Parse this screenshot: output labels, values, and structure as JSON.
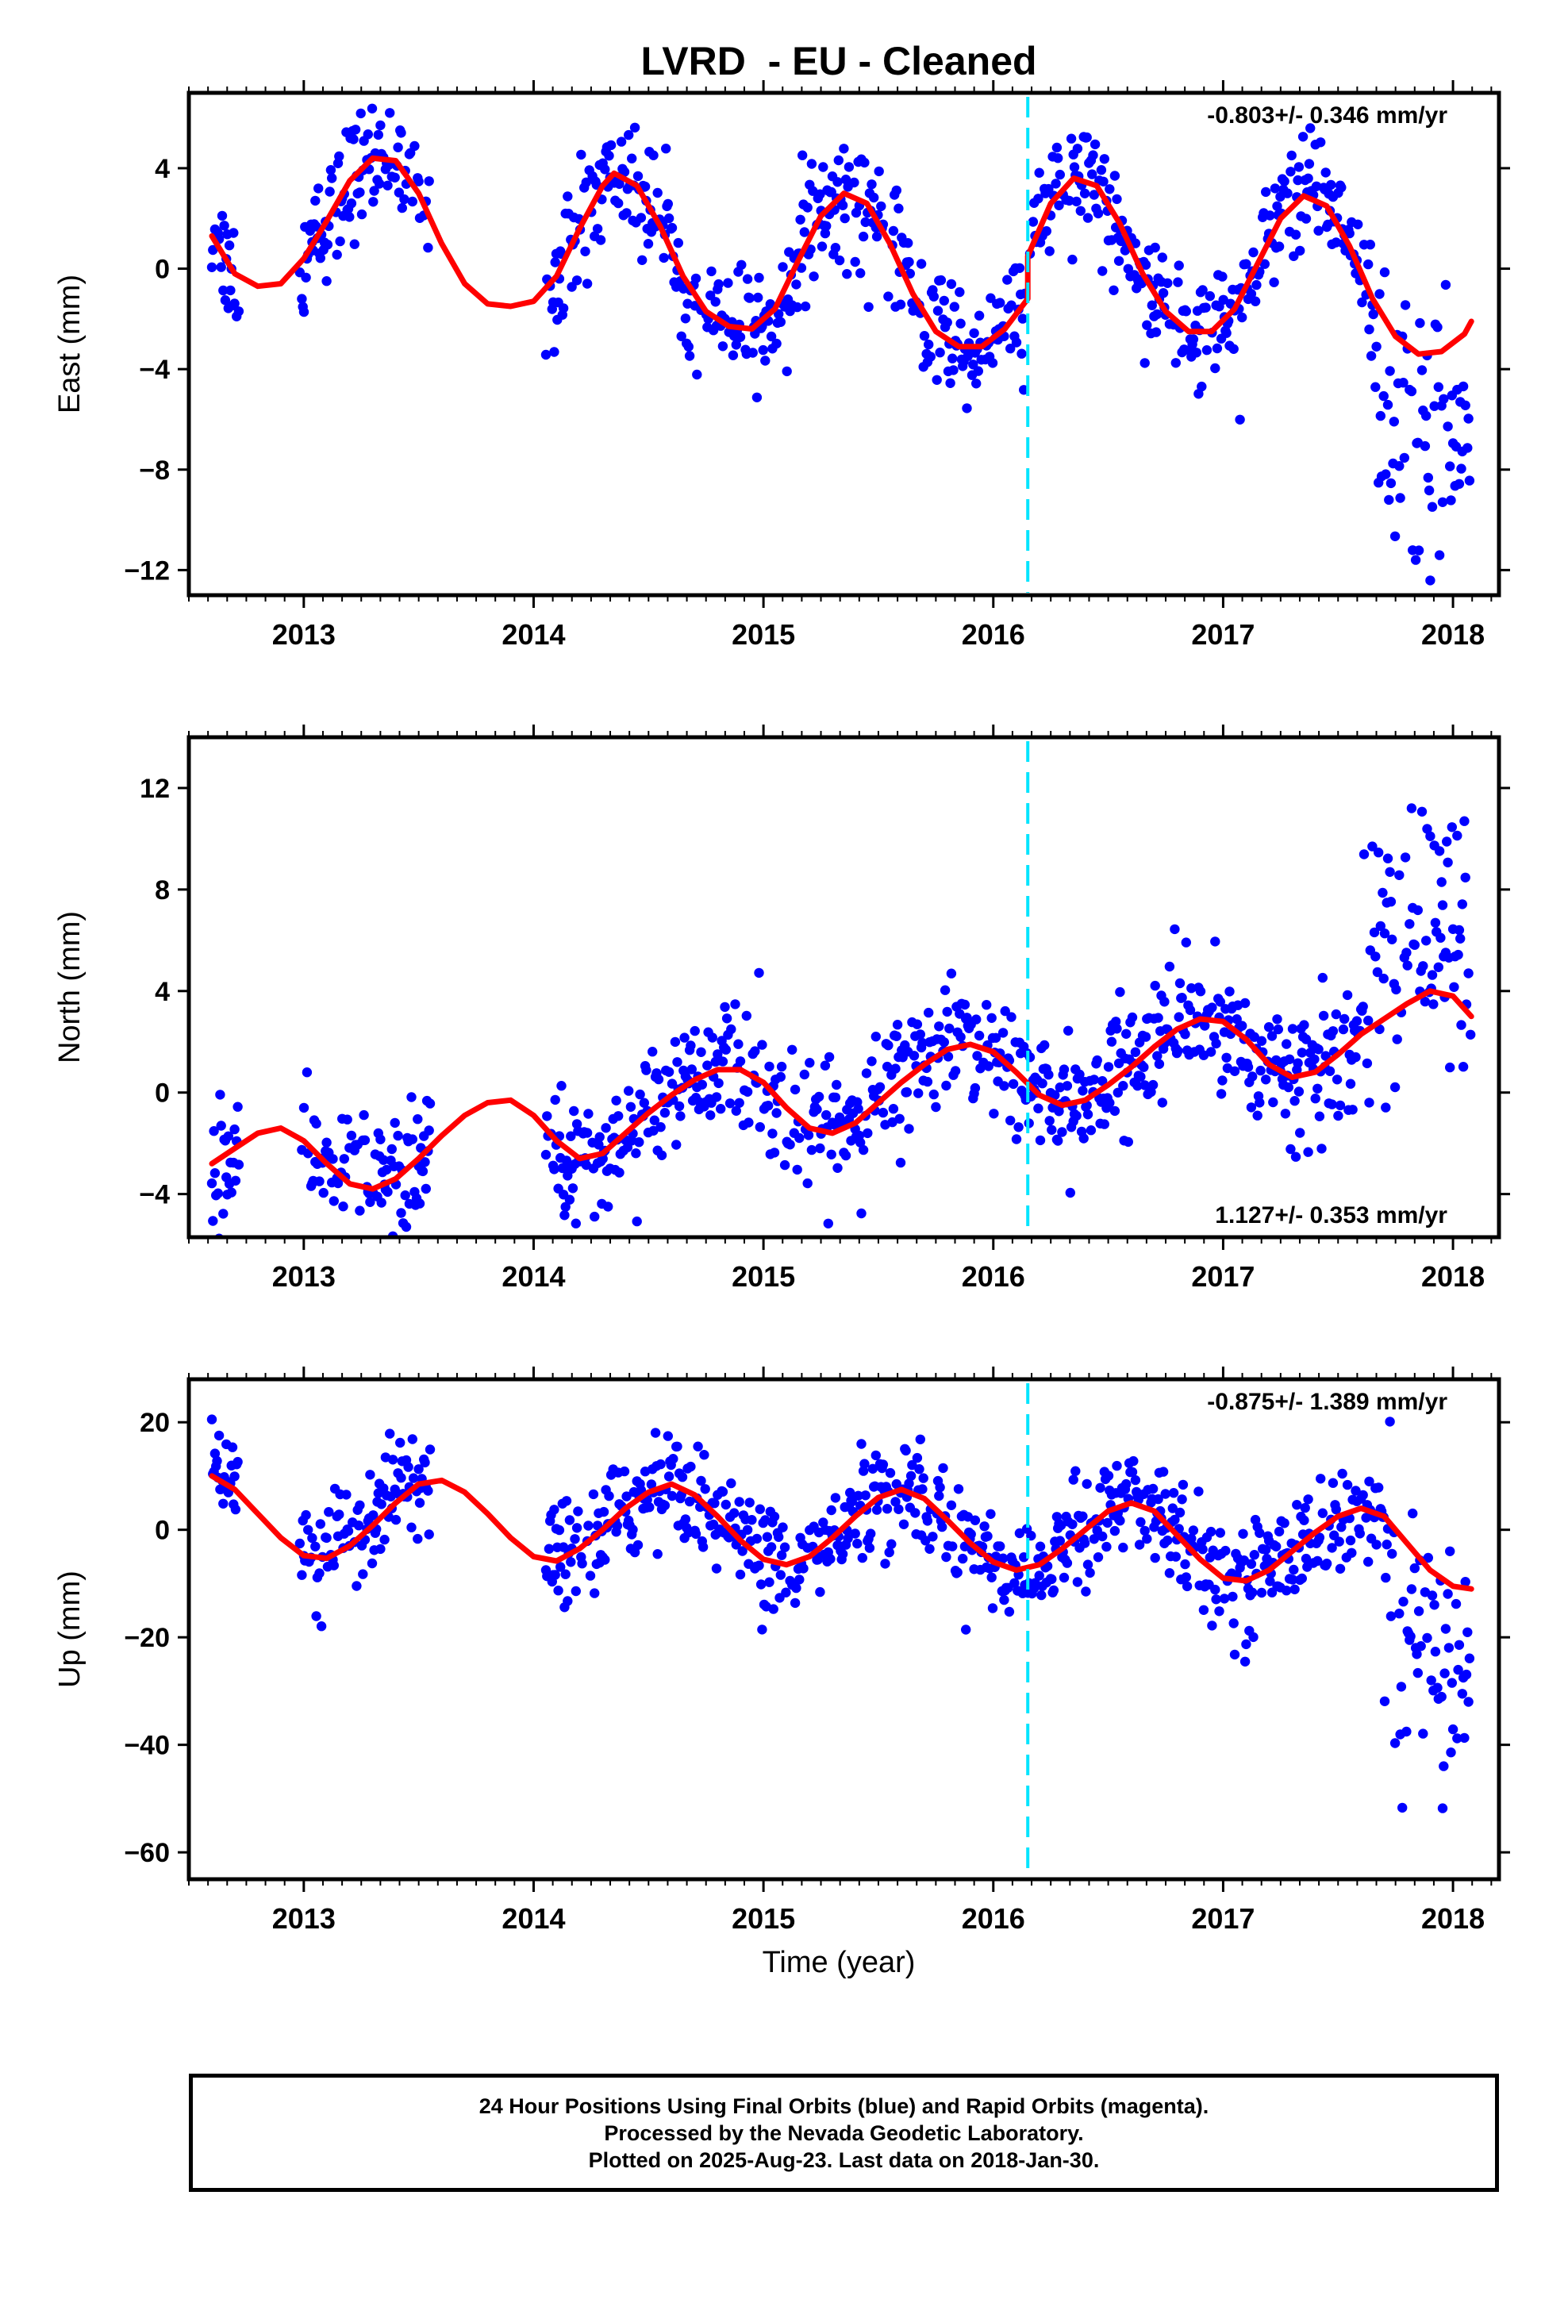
{
  "title": "LVRD  - EU - Cleaned",
  "xlabel": "Time (year)",
  "footer": {
    "line1": "24 Hour Positions Using Final Orbits (blue) and Rapid Orbits (magenta).",
    "line2": "Processed by the Nevada Geodetic Laboratory.",
    "line3": "Plotted on 2025-Aug-23. Last data on 2018-Jan-30."
  },
  "colors": {
    "data": "#0000ff",
    "fit": "#ff0000",
    "marker": "#00e5ff",
    "frame": "#000000"
  },
  "chart_data": [
    {
      "type": "scatter",
      "component": "East",
      "ylabel": "East (mm)",
      "rate_label": "-0.803+/- 0.346 mm/yr",
      "xlim": [
        2012.5,
        2018.2
      ],
      "ylim": [
        -13,
        7
      ],
      "xticks": [
        2013,
        2014,
        2015,
        2016,
        2017,
        2018
      ],
      "yticks": [
        -12,
        -8,
        -4,
        0,
        4
      ],
      "marker_epoch": 2016.15,
      "data_range": [
        2012.6,
        2018.08
      ],
      "gaps": [
        [
          2012.72,
          2012.98
        ],
        [
          2013.55,
          2014.05
        ]
      ],
      "fit": [
        [
          2012.6,
          1.3
        ],
        [
          2012.7,
          -0.2
        ],
        [
          2012.8,
          -0.7
        ],
        [
          2012.9,
          -0.6
        ],
        [
          2013.0,
          0.4
        ],
        [
          2013.1,
          1.9
        ],
        [
          2013.2,
          3.5
        ],
        [
          2013.3,
          4.4
        ],
        [
          2013.4,
          4.3
        ],
        [
          2013.5,
          3.0
        ],
        [
          2013.6,
          1.0
        ],
        [
          2013.7,
          -0.6
        ],
        [
          2013.8,
          -1.4
        ],
        [
          2013.9,
          -1.5
        ],
        [
          2014.0,
          -1.3
        ],
        [
          2014.1,
          -0.3
        ],
        [
          2014.2,
          1.6
        ],
        [
          2014.3,
          3.3
        ],
        [
          2014.35,
          3.8
        ],
        [
          2014.45,
          3.3
        ],
        [
          2014.55,
          1.7
        ],
        [
          2014.65,
          -0.3
        ],
        [
          2014.75,
          -1.7
        ],
        [
          2014.85,
          -2.3
        ],
        [
          2014.95,
          -2.4
        ],
        [
          2015.05,
          -1.6
        ],
        [
          2015.15,
          0.3
        ],
        [
          2015.25,
          2.1
        ],
        [
          2015.35,
          3.0
        ],
        [
          2015.45,
          2.6
        ],
        [
          2015.55,
          1.0
        ],
        [
          2015.65,
          -1.0
        ],
        [
          2015.75,
          -2.5
        ],
        [
          2015.85,
          -3.1
        ],
        [
          2015.95,
          -3.1
        ],
        [
          2016.05,
          -2.4
        ],
        [
          2016.15,
          -1.2
        ],
        [
          2016.15,
          0.5
        ],
        [
          2016.25,
          2.6
        ],
        [
          2016.35,
          3.6
        ],
        [
          2016.45,
          3.3
        ],
        [
          2016.55,
          1.8
        ],
        [
          2016.65,
          -0.2
        ],
        [
          2016.75,
          -1.7
        ],
        [
          2016.85,
          -2.5
        ],
        [
          2016.95,
          -2.5
        ],
        [
          2017.05,
          -1.6
        ],
        [
          2017.15,
          0.2
        ],
        [
          2017.25,
          2.0
        ],
        [
          2017.35,
          2.9
        ],
        [
          2017.45,
          2.5
        ],
        [
          2017.55,
          0.9
        ],
        [
          2017.65,
          -1.2
        ],
        [
          2017.75,
          -2.7
        ],
        [
          2017.85,
          -3.4
        ],
        [
          2017.95,
          -3.3
        ],
        [
          2018.05,
          -2.6
        ],
        [
          2018.08,
          -2.1
        ]
      ],
      "scatter_sigma": 1.2,
      "late_offset": {
        "start": 2017.65,
        "value": -4.5,
        "sigma": 2.4
      }
    },
    {
      "type": "scatter",
      "component": "North",
      "ylabel": "North (mm)",
      "rate_label": "1.127+/- 0.353 mm/yr",
      "xlim": [
        2012.5,
        2018.2
      ],
      "ylim": [
        -5.7,
        14
      ],
      "xticks": [
        2013,
        2014,
        2015,
        2016,
        2017,
        2018
      ],
      "yticks": [
        -4,
        0,
        4,
        8,
        12
      ],
      "marker_epoch": 2016.15,
      "data_range": [
        2012.6,
        2018.08
      ],
      "gaps": [
        [
          2012.72,
          2012.98
        ],
        [
          2013.55,
          2014.05
        ]
      ],
      "fit": [
        [
          2012.6,
          -2.8
        ],
        [
          2012.7,
          -2.2
        ],
        [
          2012.8,
          -1.6
        ],
        [
          2012.9,
          -1.4
        ],
        [
          2013.0,
          -1.9
        ],
        [
          2013.1,
          -2.8
        ],
        [
          2013.2,
          -3.6
        ],
        [
          2013.3,
          -3.8
        ],
        [
          2013.4,
          -3.4
        ],
        [
          2013.5,
          -2.6
        ],
        [
          2013.6,
          -1.7
        ],
        [
          2013.7,
          -0.9
        ],
        [
          2013.8,
          -0.4
        ],
        [
          2013.9,
          -0.3
        ],
        [
          2014.0,
          -0.9
        ],
        [
          2014.1,
          -1.9
        ],
        [
          2014.2,
          -2.6
        ],
        [
          2014.3,
          -2.4
        ],
        [
          2014.4,
          -1.6
        ],
        [
          2014.5,
          -0.8
        ],
        [
          2014.6,
          -0.1
        ],
        [
          2014.7,
          0.5
        ],
        [
          2014.8,
          0.9
        ],
        [
          2014.9,
          0.9
        ],
        [
          2015.0,
          0.4
        ],
        [
          2015.1,
          -0.6
        ],
        [
          2015.2,
          -1.4
        ],
        [
          2015.3,
          -1.6
        ],
        [
          2015.4,
          -1.2
        ],
        [
          2015.5,
          -0.4
        ],
        [
          2015.6,
          0.4
        ],
        [
          2015.7,
          1.1
        ],
        [
          2015.8,
          1.7
        ],
        [
          2015.9,
          1.9
        ],
        [
          2016.0,
          1.6
        ],
        [
          2016.1,
          0.8
        ],
        [
          2016.2,
          -0.1
        ],
        [
          2016.3,
          -0.5
        ],
        [
          2016.4,
          -0.3
        ],
        [
          2016.5,
          0.3
        ],
        [
          2016.6,
          1.0
        ],
        [
          2016.7,
          1.8
        ],
        [
          2016.8,
          2.5
        ],
        [
          2016.9,
          2.9
        ],
        [
          2017.0,
          2.8
        ],
        [
          2017.1,
          2.1
        ],
        [
          2017.2,
          1.1
        ],
        [
          2017.3,
          0.6
        ],
        [
          2017.4,
          0.8
        ],
        [
          2017.5,
          1.5
        ],
        [
          2017.6,
          2.3
        ],
        [
          2017.7,
          2.9
        ],
        [
          2017.8,
          3.5
        ],
        [
          2017.9,
          4.0
        ],
        [
          2018.0,
          3.8
        ],
        [
          2018.08,
          3.0
        ]
      ],
      "scatter_sigma": 1.2,
      "late_offset": {
        "start": 2017.6,
        "value": 3.5,
        "sigma": 2.0
      }
    },
    {
      "type": "scatter",
      "component": "Up",
      "ylabel": "Up (mm)",
      "rate_label": "-0.875+/- 1.389 mm/yr",
      "xlim": [
        2012.5,
        2018.2
      ],
      "ylim": [
        -65,
        28
      ],
      "xticks": [
        2013,
        2014,
        2015,
        2016,
        2017,
        2018
      ],
      "yticks": [
        -60,
        -40,
        -20,
        0,
        20
      ],
      "marker_epoch": 2016.15,
      "data_range": [
        2012.6,
        2018.08
      ],
      "gaps": [
        [
          2012.72,
          2012.98
        ],
        [
          2013.55,
          2014.05
        ]
      ],
      "fit": [
        [
          2012.6,
          10.0
        ],
        [
          2012.7,
          7.5
        ],
        [
          2012.8,
          3.0
        ],
        [
          2012.9,
          -1.5
        ],
        [
          2013.0,
          -4.8
        ],
        [
          2013.1,
          -5.3
        ],
        [
          2013.2,
          -3.0
        ],
        [
          2013.3,
          0.8
        ],
        [
          2013.4,
          5.0
        ],
        [
          2013.5,
          8.5
        ],
        [
          2013.6,
          9.2
        ],
        [
          2013.7,
          7.0
        ],
        [
          2013.8,
          3.0
        ],
        [
          2013.9,
          -1.5
        ],
        [
          2014.0,
          -5.0
        ],
        [
          2014.1,
          -5.8
        ],
        [
          2014.2,
          -3.5
        ],
        [
          2014.3,
          0.0
        ],
        [
          2014.4,
          4.0
        ],
        [
          2014.5,
          7.0
        ],
        [
          2014.6,
          8.5
        ],
        [
          2014.7,
          6.5
        ],
        [
          2014.8,
          2.5
        ],
        [
          2014.9,
          -2.0
        ],
        [
          2015.0,
          -5.5
        ],
        [
          2015.1,
          -6.5
        ],
        [
          2015.2,
          -5.0
        ],
        [
          2015.3,
          -1.5
        ],
        [
          2015.4,
          2.5
        ],
        [
          2015.5,
          6.0
        ],
        [
          2015.6,
          7.5
        ],
        [
          2015.7,
          5.8
        ],
        [
          2015.8,
          1.8
        ],
        [
          2015.9,
          -2.5
        ],
        [
          2016.0,
          -6.0
        ],
        [
          2016.1,
          -7.5
        ],
        [
          2016.2,
          -6.5
        ],
        [
          2016.3,
          -3.5
        ],
        [
          2016.4,
          0.0
        ],
        [
          2016.5,
          3.5
        ],
        [
          2016.6,
          5.0
        ],
        [
          2016.7,
          3.5
        ],
        [
          2016.8,
          -1.0
        ],
        [
          2016.9,
          -5.5
        ],
        [
          2017.0,
          -9.0
        ],
        [
          2017.1,
          -9.5
        ],
        [
          2017.2,
          -7.5
        ],
        [
          2017.3,
          -4.0
        ],
        [
          2017.4,
          -0.5
        ],
        [
          2017.5,
          2.5
        ],
        [
          2017.6,
          4.0
        ],
        [
          2017.7,
          2.5
        ],
        [
          2017.8,
          -2.5
        ],
        [
          2017.9,
          -7.5
        ],
        [
          2018.0,
          -10.5
        ],
        [
          2018.08,
          -11.0
        ]
      ],
      "scatter_sigma": 5.0,
      "late_offset": {
        "start": 2017.7,
        "value": -20.0,
        "sigma": 10.0
      }
    }
  ]
}
